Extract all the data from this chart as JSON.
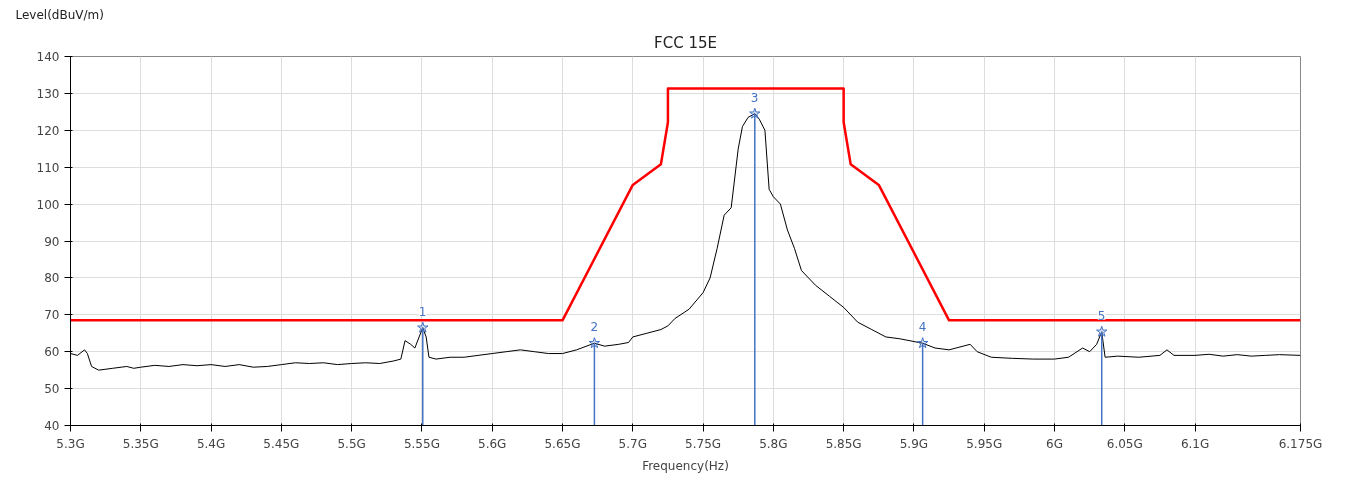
{
  "chart_data": {
    "type": "line",
    "title": "FCC 15E",
    "xlabel": "Frequency(Hz)",
    "ylabel": "Level(dBuV/m)",
    "xlim": [
      5.3,
      6.175
    ],
    "ylim": [
      40,
      140
    ],
    "xticks": [
      {
        "value": 5.3,
        "label": "5.3G"
      },
      {
        "value": 5.35,
        "label": "5.35G"
      },
      {
        "value": 5.4,
        "label": "5.4G"
      },
      {
        "value": 5.45,
        "label": "5.45G"
      },
      {
        "value": 5.5,
        "label": "5.5G"
      },
      {
        "value": 5.55,
        "label": "5.55G"
      },
      {
        "value": 5.6,
        "label": "5.6G"
      },
      {
        "value": 5.65,
        "label": "5.65G"
      },
      {
        "value": 5.7,
        "label": "5.7G"
      },
      {
        "value": 5.75,
        "label": "5.75G"
      },
      {
        "value": 5.8,
        "label": "5.8G"
      },
      {
        "value": 5.85,
        "label": "5.85G"
      },
      {
        "value": 5.9,
        "label": "5.9G"
      },
      {
        "value": 5.95,
        "label": "5.95G"
      },
      {
        "value": 6.0,
        "label": "6G"
      },
      {
        "value": 6.05,
        "label": "6.05G"
      },
      {
        "value": 6.1,
        "label": "6.1G"
      },
      {
        "value": 6.175,
        "label": "6.175G"
      }
    ],
    "yticks": [
      40,
      50,
      60,
      70,
      80,
      90,
      100,
      110,
      120,
      130,
      140
    ],
    "grid": true,
    "series": [
      {
        "color": "#ff0000",
        "x": [
          5.3,
          5.65,
          5.7,
          5.72,
          5.725,
          5.725,
          5.85,
          5.85,
          5.855,
          5.875,
          5.925,
          6.175
        ],
        "values": [
          68.5,
          68.5,
          105.2,
          110.8,
          122.2,
          131.3,
          131.3,
          122.2,
          110.8,
          105.2,
          68.5,
          68.5
        ]
      },
      {
        "color": "#000000",
        "x": [
          5.3,
          5.305,
          5.31,
          5.312,
          5.315,
          5.32,
          5.33,
          5.34,
          5.345,
          5.35,
          5.36,
          5.37,
          5.38,
          5.39,
          5.4,
          5.41,
          5.42,
          5.43,
          5.44,
          5.45,
          5.46,
          5.47,
          5.48,
          5.49,
          5.5,
          5.51,
          5.52,
          5.53,
          5.535,
          5.538,
          5.542,
          5.545,
          5.548,
          5.5506,
          5.553,
          5.555,
          5.56,
          5.57,
          5.58,
          5.59,
          5.6,
          5.61,
          5.62,
          5.63,
          5.64,
          5.65,
          5.66,
          5.6727,
          5.68,
          5.69,
          5.697,
          5.7,
          5.71,
          5.72,
          5.725,
          5.73,
          5.74,
          5.75,
          5.755,
          5.76,
          5.765,
          5.77,
          5.775,
          5.778,
          5.782,
          5.7868,
          5.79,
          5.794,
          5.797,
          5.8,
          5.805,
          5.81,
          5.815,
          5.82,
          5.83,
          5.84,
          5.85,
          5.86,
          5.87,
          5.88,
          5.89,
          5.9062,
          5.915,
          5.925,
          5.935,
          5.94,
          5.945,
          5.955,
          5.97,
          5.985,
          6.0,
          6.01,
          6.02,
          6.025,
          6.03,
          6.0336,
          6.036,
          6.045,
          6.06,
          6.075,
          6.08,
          6.085,
          6.1,
          6.11,
          6.12,
          6.13,
          6.14,
          6.15,
          6.16,
          6.175
        ],
        "values": [
          59.5,
          59,
          60.5,
          59.5,
          56,
          55,
          55.5,
          56,
          55.5,
          55.8,
          56.3,
          56,
          56.5,
          56.2,
          56.5,
          56,
          56.5,
          55.8,
          56,
          56.5,
          57,
          56.8,
          57,
          56.5,
          56.8,
          57,
          56.8,
          57.5,
          58,
          63,
          62,
          61,
          64,
          66.5,
          64,
          58.5,
          58,
          58.5,
          58.5,
          59,
          59.5,
          60,
          60.5,
          60,
          59.5,
          59.5,
          60.5,
          62.3,
          61.5,
          62,
          62.5,
          64,
          65,
          66,
          67,
          69,
          71.5,
          76,
          80,
          88,
          97,
          99,
          115,
          121,
          123.5,
          124.5,
          123,
          120,
          104,
          102,
          100,
          93,
          88,
          82,
          78,
          75,
          72,
          68,
          66,
          64,
          63.5,
          62.3,
          61,
          60.5,
          61.5,
          62,
          60,
          58.5,
          58.2,
          58,
          58,
          58.5,
          61,
          60,
          62,
          65.4,
          58.5,
          58.8,
          58.5,
          59,
          60.5,
          59,
          59,
          59.3,
          58.8,
          59.2,
          58.8,
          59,
          59.2,
          59
        ]
      },
      {
        "type": "lollipop",
        "color": "#4472c4",
        "marker": "star",
        "x": [
          5.5506,
          5.6727,
          5.7868,
          5.9062,
          6.0336
        ],
        "values": [
          66.5,
          62.3,
          124.5,
          62.3,
          65.4
        ]
      }
    ],
    "annotations": [
      {
        "text": "1",
        "x": 5.5506,
        "y": 66.5
      },
      {
        "text": "2",
        "x": 5.6727,
        "y": 62.3
      },
      {
        "text": "3",
        "x": 5.7868,
        "y": 124.5
      },
      {
        "text": "4",
        "x": 5.9062,
        "y": 62.3
      },
      {
        "text": "5",
        "x": 6.0336,
        "y": 65.4
      }
    ]
  }
}
